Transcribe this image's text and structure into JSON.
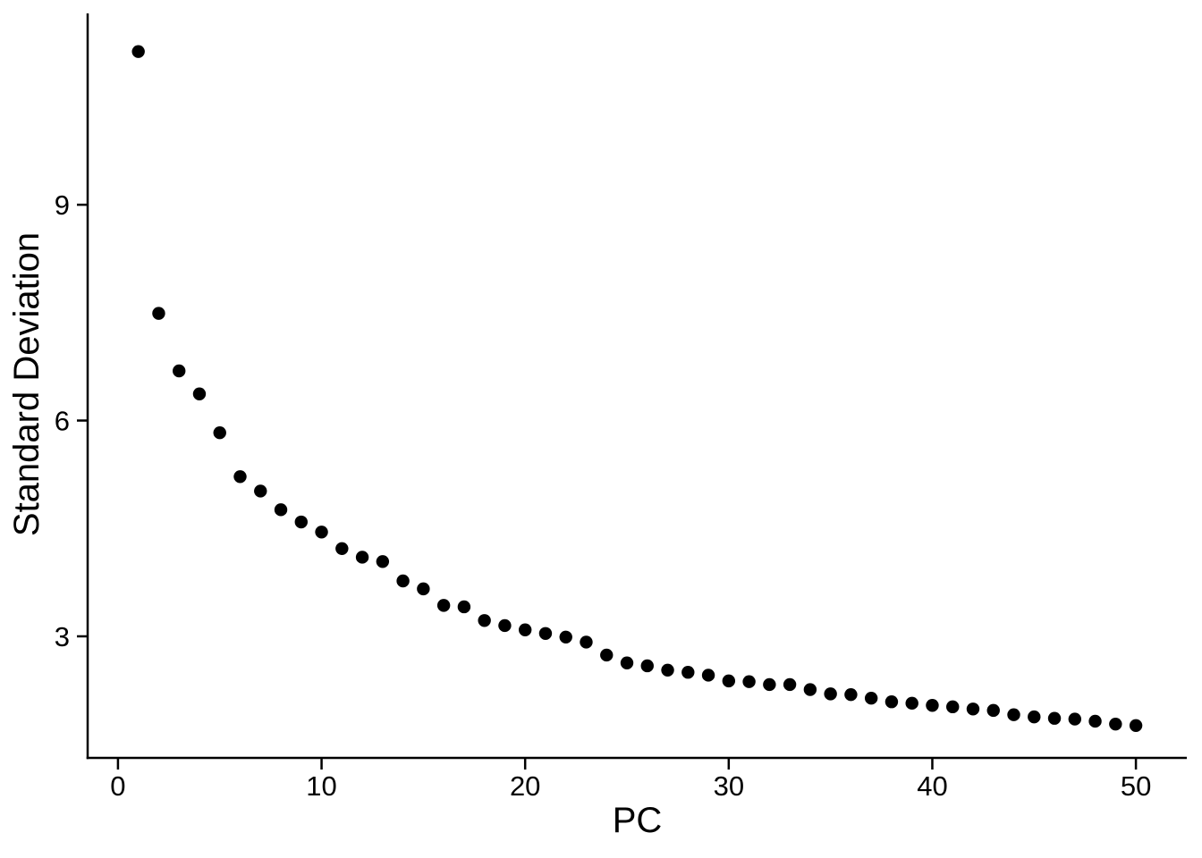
{
  "figure": {
    "background": "#FFFFFF"
  },
  "chart_data": {
    "type": "scatter",
    "title": "",
    "xlabel": "PC",
    "ylabel": "Standard Deviation",
    "x_ticks": [
      0,
      10,
      20,
      30,
      40,
      50
    ],
    "y_ticks": [
      3,
      6,
      9
    ],
    "xlim": [
      -1.49,
      52.5
    ],
    "ylim": [
      1.31,
      11.66
    ],
    "grid": false,
    "legend": false,
    "point_color": "#000000",
    "axis_color": "#000000",
    "point_radius": 7.2,
    "series": [
      {
        "name": "standard-deviation-by-pc",
        "x": [
          1,
          2,
          3,
          4,
          5,
          6,
          7,
          8,
          9,
          10,
          11,
          12,
          13,
          14,
          15,
          16,
          17,
          18,
          19,
          20,
          21,
          22,
          23,
          24,
          25,
          26,
          27,
          28,
          29,
          30,
          31,
          32,
          33,
          34,
          35,
          36,
          37,
          38,
          39,
          40,
          41,
          42,
          43,
          44,
          45,
          46,
          47,
          48,
          49,
          50
        ],
        "y": [
          11.13,
          7.49,
          6.69,
          6.37,
          5.83,
          5.22,
          5.02,
          4.76,
          4.59,
          4.45,
          4.22,
          4.1,
          4.04,
          3.77,
          3.66,
          3.43,
          3.41,
          3.22,
          3.15,
          3.09,
          3.04,
          2.99,
          2.92,
          2.74,
          2.63,
          2.59,
          2.53,
          2.5,
          2.46,
          2.38,
          2.37,
          2.33,
          2.33,
          2.26,
          2.2,
          2.19,
          2.14,
          2.09,
          2.07,
          2.04,
          2.02,
          1.99,
          1.97,
          1.91,
          1.88,
          1.86,
          1.85,
          1.82,
          1.78,
          1.76
        ]
      }
    ]
  }
}
